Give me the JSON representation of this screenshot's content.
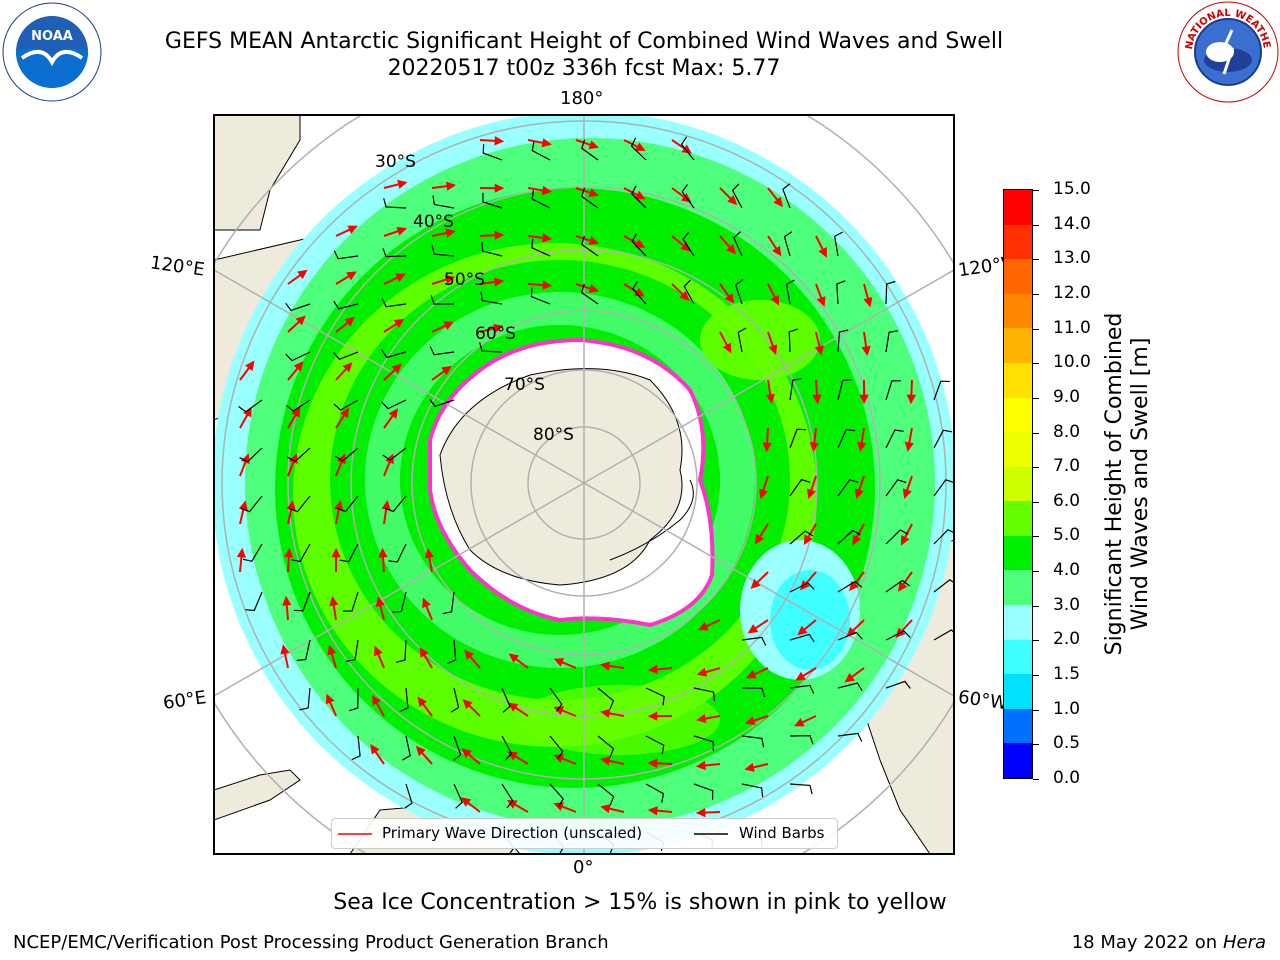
{
  "title": {
    "line1": "GEFS MEAN Antarctic Significant Height of Combined Wind Waves and Swell",
    "line2": "20220517 t00z 336h fcst   Max: 5.77"
  },
  "logos": {
    "left": "NOAA",
    "left_ring": "NATIONAL OCEANIC AND ATMOSPHERIC ADMINISTRATION · U.S. DEPARTMENT OF COMMERCE",
    "right_ring": "NATIONAL WEATHER SERVICE"
  },
  "map": {
    "projection": "south-polar-stereographic",
    "longitude_labels": {
      "top": "180°",
      "bottom": "0°",
      "upper_left": "120°E",
      "upper_right": "120°W",
      "lower_left": "60°E",
      "lower_right": "60°W"
    },
    "latitude_labels": [
      "30°S",
      "40°S",
      "50°S",
      "60°S",
      "70°S",
      "80°S"
    ],
    "colors": {
      "land": "#efebdc",
      "ice_fill": "#ffffff",
      "grid": "#b0b0b0",
      "arrows": "#ff0000",
      "barbs": "#000000",
      "ice_edge": "#ff33cc"
    }
  },
  "colorbar": {
    "label_line1": "Significant Height of Combined",
    "label_line2": "Wind Waves and Swell [m]",
    "ticks": [
      "0.0",
      "0.5",
      "1.0",
      "1.5",
      "2.0",
      "3.0",
      "4.0",
      "5.0",
      "6.0",
      "7.0",
      "8.0",
      "9.0",
      "10.0",
      "11.0",
      "12.0",
      "13.0",
      "14.0",
      "15.0"
    ],
    "colors": [
      "#0000ff",
      "#0070ff",
      "#00e0ff",
      "#40ffff",
      "#99ffff",
      "#4dff7a",
      "#00ee00",
      "#66ff00",
      "#ccff00",
      "#eeff00",
      "#ffff00",
      "#ffe000",
      "#ffb400",
      "#ff8800",
      "#ff6600",
      "#ff3000",
      "#ff0000"
    ]
  },
  "legend": {
    "primary_wave": "Primary Wave Direction (unscaled)",
    "wind_barbs": "Wind Barbs"
  },
  "footer": {
    "sea_ice_note": "Sea Ice Concentration > 15% is shown in pink to yellow",
    "credit": "NCEP/EMC/Verification Post Processing Product Generation Branch",
    "date": "18 May 2022 on",
    "machine": "Hera"
  }
}
